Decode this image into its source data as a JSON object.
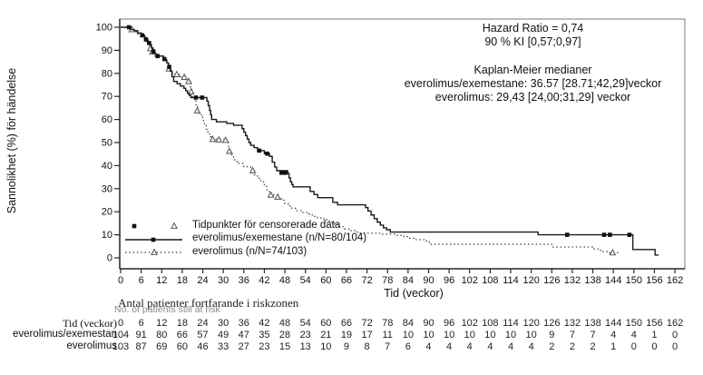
{
  "chart_data": {
    "type": "line",
    "subtype": "kaplan-meier-step",
    "title": "",
    "xlabel": "Tid (veckor)",
    "ylabel": "Sannolikhet (%) för händelse",
    "xlim": [
      0,
      162
    ],
    "ylim": [
      0,
      100
    ],
    "x_ticks": [
      0,
      6,
      12,
      18,
      24,
      30,
      36,
      42,
      48,
      54,
      60,
      66,
      72,
      78,
      84,
      90,
      96,
      102,
      108,
      114,
      120,
      126,
      132,
      138,
      144,
      150,
      156,
      162
    ],
    "y_ticks": [
      0,
      10,
      20,
      30,
      40,
      50,
      60,
      70,
      80,
      90,
      100
    ],
    "grid": false,
    "axis_color": "#2a2a2a",
    "box_color": "#909090",
    "annotation": {
      "lines": [
        "Hazard Ratio = 0,74",
        "90 % KI [0,57;0,97]",
        "Kaplan-Meier medianer",
        "everolimus/exemestane: 36.57 [28.71;42,29]veckor",
        "everolimus: 29,43 [24,00;31,29] veckor"
      ]
    },
    "legend": {
      "position": "inside-bottom-left",
      "censor_label": "Tidpunkter för censorerade data",
      "series1_label": "everolimus/exemestane (n/N=80/104)",
      "series2_label": "everolimus (n/N=74/103)"
    },
    "series": [
      {
        "name": "everolimus",
        "style": "dotted",
        "marker": "open-triangle",
        "color": "#3a3a3a",
        "end_t": 145.5,
        "points": [
          [
            0,
            100
          ],
          [
            3,
            99
          ],
          [
            4,
            98
          ],
          [
            5,
            97
          ],
          [
            6,
            96
          ],
          [
            7,
            94.5
          ],
          [
            7.5,
            93.5
          ],
          [
            8,
            92.5
          ],
          [
            8.5,
            91
          ],
          [
            9,
            89.5
          ],
          [
            9.5,
            88.5
          ],
          [
            10,
            87.5
          ],
          [
            13,
            86.5
          ],
          [
            13.5,
            84.5
          ],
          [
            14,
            82.5
          ],
          [
            14.5,
            81
          ],
          [
            15,
            80
          ],
          [
            16,
            79.5
          ],
          [
            17.5,
            78.5
          ],
          [
            19,
            77.3
          ],
          [
            20,
            76.3
          ],
          [
            20.4,
            73
          ],
          [
            21,
            70
          ],
          [
            21.5,
            68
          ],
          [
            22,
            65.5
          ],
          [
            22.5,
            63.5
          ],
          [
            23,
            62
          ],
          [
            23.6,
            61
          ],
          [
            24,
            59.5
          ],
          [
            24.5,
            57.5
          ],
          [
            25,
            55.8
          ],
          [
            25.5,
            54
          ],
          [
            26,
            52.5
          ],
          [
            26.5,
            51.5
          ],
          [
            31,
            51
          ],
          [
            31.5,
            47
          ],
          [
            32,
            45.5
          ],
          [
            32.5,
            44.3
          ],
          [
            33,
            42.5
          ],
          [
            34,
            41
          ],
          [
            36,
            39.5
          ],
          [
            38,
            38
          ],
          [
            39,
            36
          ],
          [
            40,
            34.5
          ],
          [
            41,
            33
          ],
          [
            42,
            31
          ],
          [
            42.7,
            29.5
          ],
          [
            43.4,
            28
          ],
          [
            43.8,
            27.3
          ],
          [
            46.1,
            26.1
          ],
          [
            47,
            25
          ],
          [
            48,
            23.5
          ],
          [
            49,
            22.5
          ],
          [
            50,
            21.5
          ],
          [
            51.5,
            20.5
          ],
          [
            53,
            19.7
          ],
          [
            54.9,
            19
          ],
          [
            56,
            18
          ],
          [
            57.5,
            17.3
          ],
          [
            59.4,
            16.5
          ],
          [
            61,
            15.5
          ],
          [
            62.5,
            14.5
          ],
          [
            64,
            13.5
          ],
          [
            65.5,
            12.5
          ],
          [
            67,
            11.8
          ],
          [
            68.5,
            11.2
          ],
          [
            70,
            10.7
          ],
          [
            76,
            10.3
          ],
          [
            80,
            9.8
          ],
          [
            82.8,
            9.2
          ],
          [
            84.2,
            8.5
          ],
          [
            85.9,
            7.9
          ],
          [
            89.4,
            7
          ],
          [
            90.2,
            5.9
          ],
          [
            126,
            4.7
          ],
          [
            138,
            3.9
          ],
          [
            139.5,
            3.3
          ],
          [
            141,
            2.7
          ],
          [
            142.5,
            2.2
          ]
        ],
        "censors": [
          [
            3.3,
            99
          ],
          [
            8.7,
            90.8
          ],
          [
            9.3,
            89.3
          ],
          [
            14.1,
            82
          ],
          [
            16.4,
            79.5
          ],
          [
            18.6,
            78.3
          ],
          [
            19.9,
            76.5
          ],
          [
            20.6,
            72
          ],
          [
            22.4,
            63.8
          ],
          [
            26.9,
            51.4
          ],
          [
            28.7,
            51.2
          ],
          [
            30.7,
            51
          ],
          [
            31.8,
            46.2
          ],
          [
            38.6,
            37.8
          ],
          [
            43.9,
            27.2
          ],
          [
            45.9,
            26.3
          ],
          [
            143.8,
            2.2
          ]
        ]
      },
      {
        "name": "everolimus/exemestane",
        "style": "solid",
        "marker": "filled-square",
        "color": "#1a1a1a",
        "end_t": 157.2,
        "points": [
          [
            0,
            100
          ],
          [
            3,
            99
          ],
          [
            4,
            98.5
          ],
          [
            5,
            97.5
          ],
          [
            6,
            96.5
          ],
          [
            7,
            95.5
          ],
          [
            7.5,
            94.5
          ],
          [
            8,
            93.5
          ],
          [
            8.5,
            92.5
          ],
          [
            9,
            91
          ],
          [
            9.5,
            89.5
          ],
          [
            10,
            88.5
          ],
          [
            10.5,
            87.5
          ],
          [
            12.5,
            86.5
          ],
          [
            13,
            85.5
          ],
          [
            13.5,
            84.5
          ],
          [
            14,
            83
          ],
          [
            14.5,
            81
          ],
          [
            15,
            78.5
          ],
          [
            15.5,
            76.5
          ],
          [
            16.5,
            75.5
          ],
          [
            17.5,
            74.5
          ],
          [
            18.5,
            73.5
          ],
          [
            19,
            72.5
          ],
          [
            19.5,
            71.5
          ],
          [
            20,
            70.5
          ],
          [
            20.5,
            69.5
          ],
          [
            25.2,
            68
          ],
          [
            25.6,
            66
          ],
          [
            26,
            64
          ],
          [
            26.3,
            62
          ],
          [
            26.6,
            60
          ],
          [
            28,
            59
          ],
          [
            31,
            58.3
          ],
          [
            33,
            57.5
          ],
          [
            35.5,
            56
          ],
          [
            36,
            54.5
          ],
          [
            36.5,
            53
          ],
          [
            37,
            51.5
          ],
          [
            37.5,
            50
          ],
          [
            38,
            48.8
          ],
          [
            39,
            47.8
          ],
          [
            40,
            46.5
          ],
          [
            42,
            45.2
          ],
          [
            43.5,
            44
          ],
          [
            44.3,
            41.5
          ],
          [
            45,
            39.4
          ],
          [
            45.6,
            37.8
          ],
          [
            48.8,
            36.7
          ],
          [
            49.2,
            34.7
          ],
          [
            49.6,
            33
          ],
          [
            50,
            31.8
          ],
          [
            50.4,
            30.8
          ],
          [
            55.4,
            28.8
          ],
          [
            56.5,
            27.5
          ],
          [
            57.6,
            26.1
          ],
          [
            62,
            24.1
          ],
          [
            63.4,
            23
          ],
          [
            71.6,
            21.8
          ],
          [
            72.3,
            20.3
          ],
          [
            73.2,
            18.6
          ],
          [
            74.1,
            17
          ],
          [
            75,
            15.5
          ],
          [
            75.9,
            14.2
          ],
          [
            76.8,
            13
          ],
          [
            77.7,
            12.2
          ],
          [
            78.8,
            11.2
          ],
          [
            122,
            10
          ],
          [
            149.7,
            3.6
          ],
          [
            156.2,
            1.2
          ]
        ],
        "censors": [
          [
            2.4,
            100
          ],
          [
            6.3,
            96.5
          ],
          [
            7.4,
            94.7
          ],
          [
            8.3,
            93.2
          ],
          [
            9.6,
            89.5
          ],
          [
            10.8,
            87.5
          ],
          [
            12.8,
            86.2
          ],
          [
            14.2,
            82.8
          ],
          [
            22,
            69.5
          ],
          [
            23.8,
            69.5
          ],
          [
            40.5,
            46.5
          ],
          [
            42.8,
            45.2
          ],
          [
            47,
            36.9
          ],
          [
            48.2,
            36.9
          ],
          [
            130.5,
            10
          ],
          [
            141.3,
            10
          ],
          [
            143,
            10
          ],
          [
            148.7,
            10
          ]
        ]
      }
    ]
  },
  "risk_table": {
    "title_sv": "Antal patienter fortfarande i riskzonen",
    "title_en": "No. of patients still at risk",
    "row_labels": [
      "Tid (veckor)",
      "everolimus/exemestan",
      "everolimus"
    ],
    "weeks": [
      0,
      6,
      12,
      18,
      24,
      30,
      36,
      42,
      48,
      54,
      60,
      66,
      72,
      78,
      84,
      90,
      96,
      102,
      108,
      114,
      120,
      126,
      132,
      138,
      144,
      150,
      156,
      162
    ],
    "everolimus_exemestan": [
      104,
      91,
      80,
      66,
      57,
      49,
      47,
      35,
      28,
      23,
      21,
      19,
      17,
      11,
      10,
      10,
      10,
      10,
      10,
      10,
      10,
      9,
      7,
      7,
      4,
      4,
      1,
      0
    ],
    "everolimus": [
      103,
      87,
      69,
      60,
      46,
      33,
      27,
      23,
      15,
      13,
      10,
      9,
      8,
      7,
      6,
      4,
      4,
      4,
      4,
      4,
      4,
      2,
      2,
      2,
      1,
      0,
      0,
      0
    ]
  }
}
